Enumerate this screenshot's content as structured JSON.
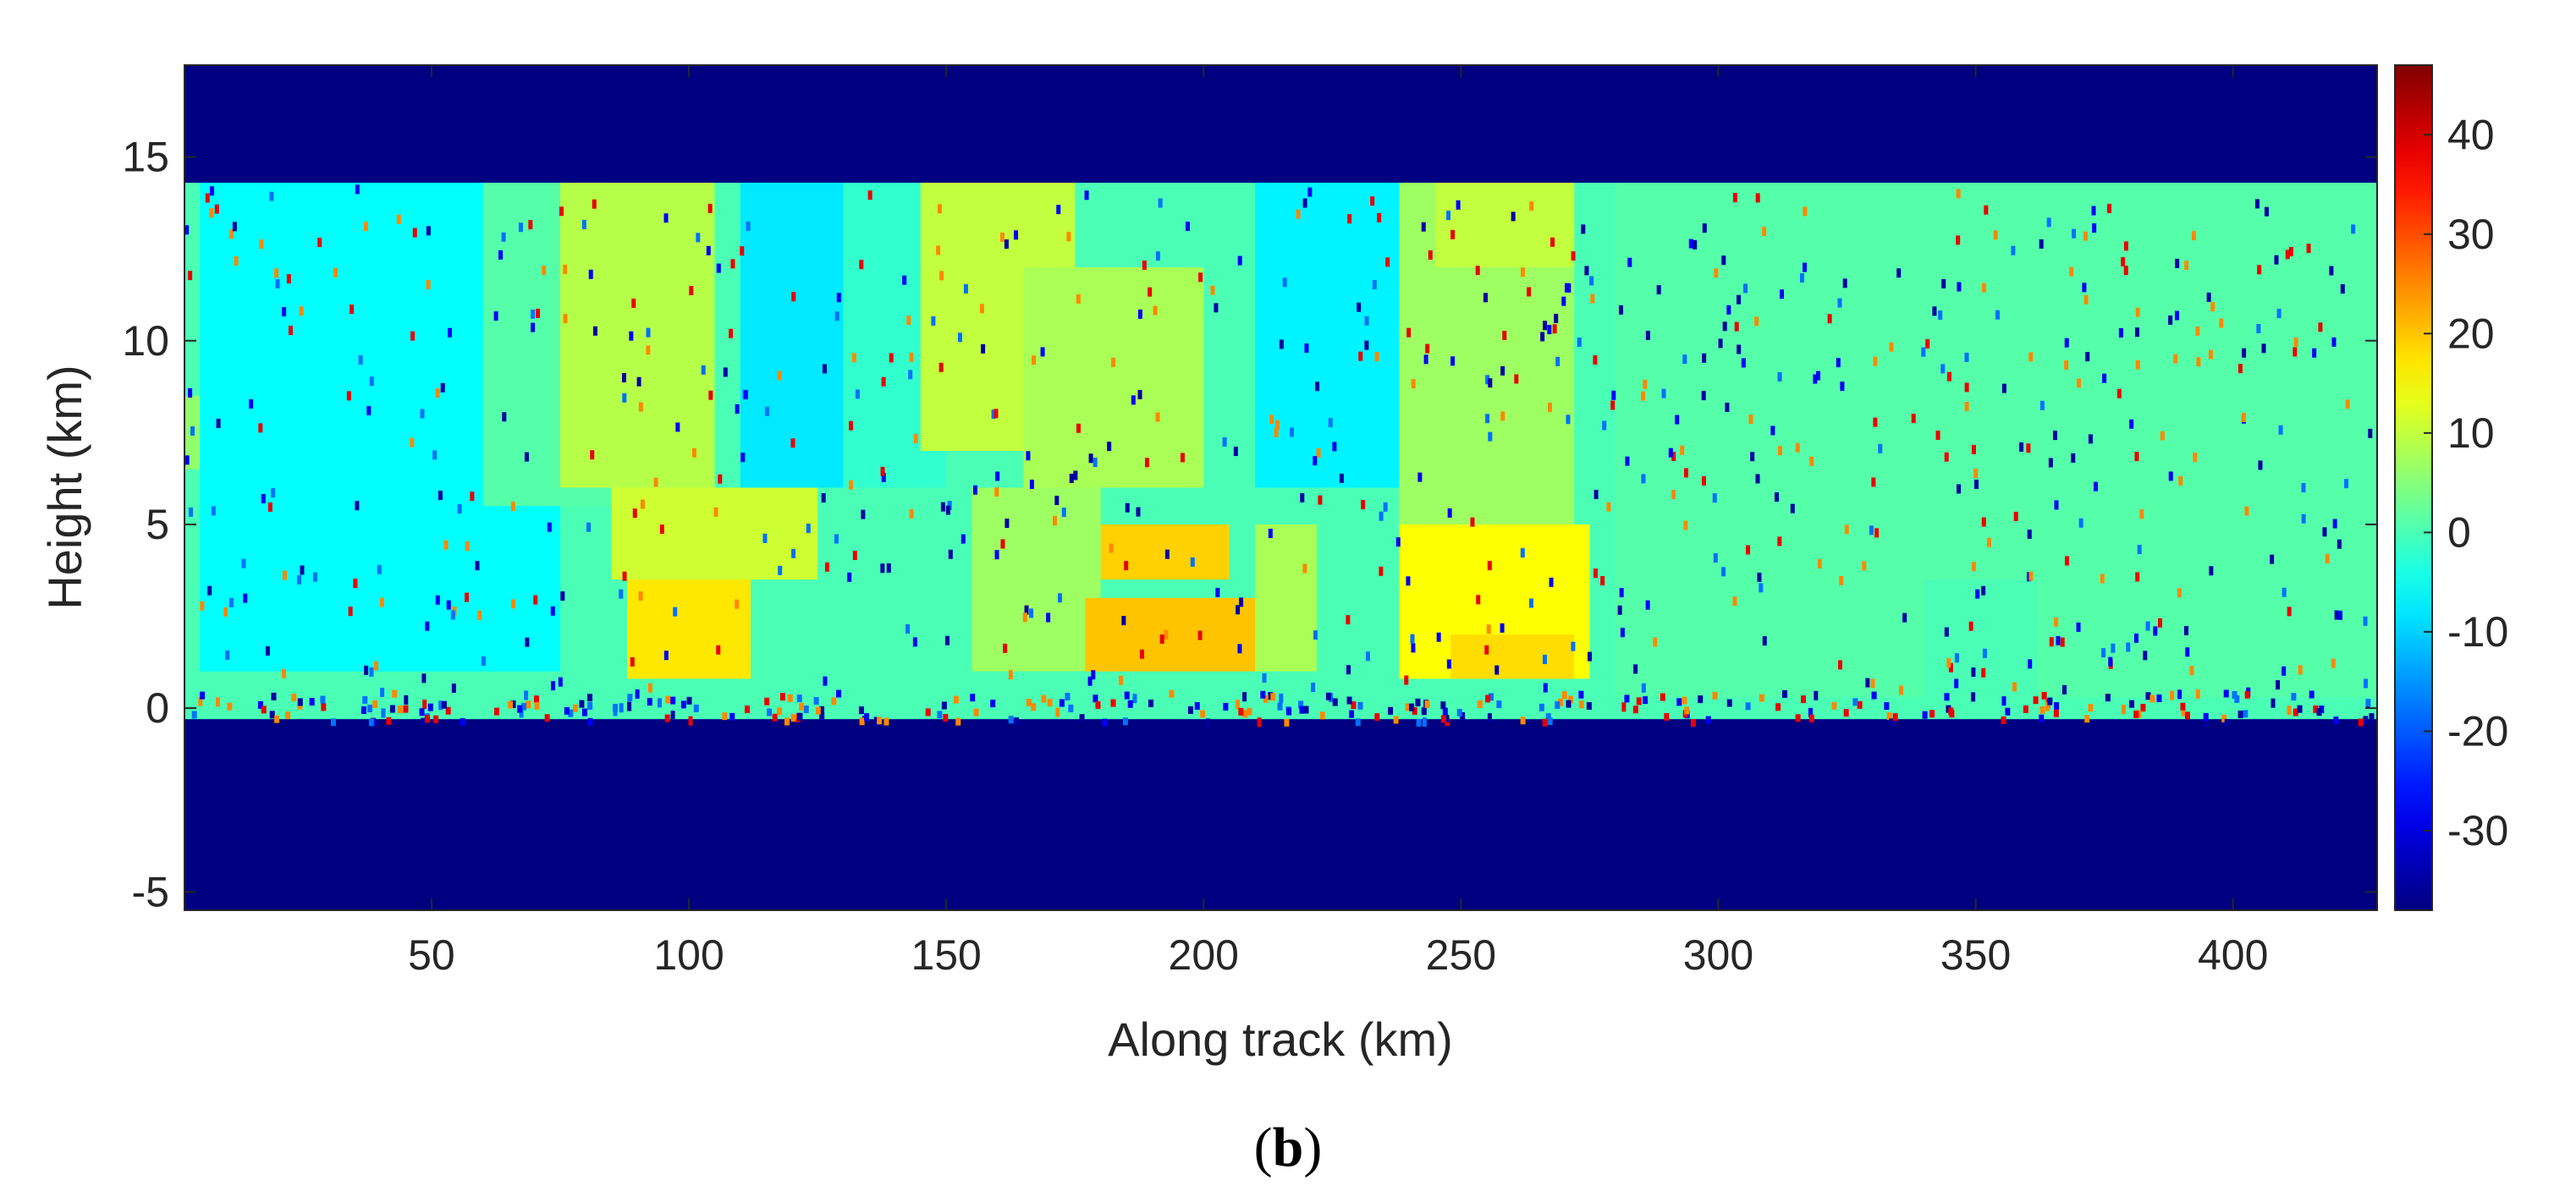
{
  "chart_data": {
    "type": "heatmap",
    "title": "",
    "xlabel": "Along track (km)",
    "ylabel": "Height (km)",
    "panel_label": {
      "open": "(",
      "letter": "b",
      "close": ")"
    },
    "xlim": [
      2,
      428
    ],
    "ylim": [
      -5.5,
      17.5
    ],
    "x_ticks": [
      50,
      100,
      150,
      200,
      250,
      300,
      350,
      400
    ],
    "y_ticks": [
      -5,
      0,
      5,
      10,
      15
    ],
    "colorbar": {
      "colormap": "jet",
      "range": [
        -38,
        47
      ],
      "ticks": [
        -30,
        -20,
        -10,
        0,
        10,
        20,
        30,
        40
      ]
    },
    "no_data_value": -38,
    "data_band_km": [
      -0.3,
      14.3
    ],
    "background_value": 0,
    "regions": [
      {
        "x0": 2,
        "x1": 12,
        "y0": 6.5,
        "y1": 8.5,
        "value": 6
      },
      {
        "x0": 5,
        "x1": 75,
        "y0": 1,
        "y1": 14.3,
        "value": -6
      },
      {
        "x0": 60,
        "x1": 85,
        "y0": 5.5,
        "y1": 14.3,
        "value": 1
      },
      {
        "x0": 75,
        "x1": 105,
        "y0": 6,
        "y1": 14.3,
        "value": 9
      },
      {
        "x0": 85,
        "x1": 125,
        "y0": 3.5,
        "y1": 6,
        "value": 11
      },
      {
        "x0": 88,
        "x1": 112,
        "y0": 0.8,
        "y1": 3.5,
        "value": 17
      },
      {
        "x0": 110,
        "x1": 130,
        "y0": 6,
        "y1": 14.3,
        "value": -8
      },
      {
        "x0": 130,
        "x1": 150,
        "y0": 6,
        "y1": 14.3,
        "value": -2
      },
      {
        "x0": 145,
        "x1": 175,
        "y0": 7,
        "y1": 14.3,
        "value": 10
      },
      {
        "x0": 165,
        "x1": 200,
        "y0": 6,
        "y1": 12,
        "value": 8
      },
      {
        "x0": 155,
        "x1": 180,
        "y0": 1,
        "y1": 6,
        "value": 7
      },
      {
        "x0": 180,
        "x1": 205,
        "y0": 3.5,
        "y1": 5,
        "value": 19
      },
      {
        "x0": 177,
        "x1": 212,
        "y0": 1,
        "y1": 3,
        "value": 20
      },
      {
        "x0": 210,
        "x1": 222,
        "y0": 1,
        "y1": 5,
        "value": 8
      },
      {
        "x0": 210,
        "x1": 240,
        "y0": 6,
        "y1": 14.3,
        "value": -7
      },
      {
        "x0": 238,
        "x1": 272,
        "y0": 5,
        "y1": 14.3,
        "value": 7
      },
      {
        "x0": 238,
        "x1": 275,
        "y0": 0.8,
        "y1": 5,
        "value": 15
      },
      {
        "x0": 248,
        "x1": 272,
        "y0": 0.8,
        "y1": 2,
        "value": 18
      },
      {
        "x0": 245,
        "x1": 272,
        "y0": 12,
        "y1": 14.3,
        "value": 10
      },
      {
        "x0": 280,
        "x1": 428,
        "y0": 0.3,
        "y1": 14.3,
        "value": 1
      },
      {
        "x0": 340,
        "x1": 362,
        "y0": 0,
        "y1": 3.5,
        "value": 0
      }
    ]
  }
}
